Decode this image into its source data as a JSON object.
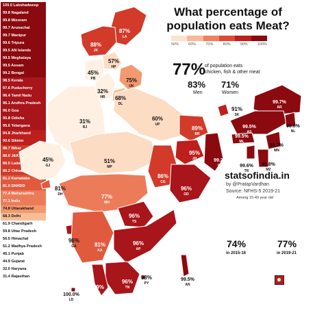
{
  "title_line1": "What percentage of",
  "title_line2": "population eats Meat?",
  "legend": {
    "ticks": [
      "50%",
      "60%",
      "70%",
      "80%",
      "90%",
      "100%"
    ],
    "colors": [
      "#fde2cf",
      "#f9b896",
      "#ef8060",
      "#dc4a33",
      "#bd1f1d",
      "#8b0a0f"
    ]
  },
  "headline": {
    "value": "77%",
    "caption_line1": "of population eats",
    "caption_line2": "chicken, fish & other meat"
  },
  "men": {
    "value": "83%",
    "label": "Men"
  },
  "women": {
    "value": "71%",
    "label": "Women"
  },
  "brand": "statsofindia.in",
  "byline": "by @PratapVardhan",
  "source": "Source: NFHS-5 2019-21",
  "among": "Among 15-49 year old",
  "trend_2015": {
    "value": "74%",
    "label": "in 2015-16"
  },
  "trend_2019": {
    "value": "77%",
    "label": "in 2019-21"
  },
  "ranking": [
    {
      "text": "100.0 Lakshadweep",
      "value": 100.0
    },
    {
      "text": "99.8 Nagaland",
      "value": 99.8
    },
    {
      "text": "99.8 Mizoram",
      "value": 99.8
    },
    {
      "text": "99.7 Arunachal",
      "value": 99.7
    },
    {
      "text": "99.7 Manipur",
      "value": 99.7
    },
    {
      "text": "99.6 Tripura",
      "value": 99.6
    },
    {
      "text": "99.5 AN Islands",
      "value": 99.5
    },
    {
      "text": "99.5 Meghalaya",
      "value": 99.5
    },
    {
      "text": "99.5 Assam",
      "value": 99.5
    },
    {
      "text": "99.2 Bengal",
      "value": 99.2
    },
    {
      "text": "98.5 Kerala",
      "value": 98.5
    },
    {
      "text": "97.6 Puducherry",
      "value": 97.6
    },
    {
      "text": "96.4 Tamil Nadu",
      "value": 96.4
    },
    {
      "text": "96.1 Andhra Pradesh",
      "value": 96.1
    },
    {
      "text": "96.0 Goa",
      "value": 96.0
    },
    {
      "text": "95.8 Odisha",
      "value": 95.8
    },
    {
      "text": "95.6 Telangana",
      "value": 95.6
    },
    {
      "text": "94.8 Jharkhand",
      "value": 94.8
    },
    {
      "text": "90.6 Sikkim",
      "value": 90.6
    },
    {
      "text": "88.7 Bihar",
      "value": 88.7
    },
    {
      "text": "88.0 J&K",
      "value": 88.0
    },
    {
      "text": "86.5 Ladakh",
      "value": 86.5
    },
    {
      "text": "86.2 Chhattisgarh",
      "value": 86.2
    },
    {
      "text": "81.2 Karnataka",
      "value": 81.2
    },
    {
      "text": "81.0 DNHDD",
      "value": 81.0
    },
    {
      "text": "77.4 Maharashtra",
      "value": 77.4
    },
    {
      "text": "77.1 India",
      "value": 77.1
    },
    {
      "text": "74.8 Uttarakhand",
      "value": 74.8
    },
    {
      "text": "68.3 Delhi",
      "value": 68.3
    },
    {
      "text": "61.9 Chandigarh",
      "value": 61.9
    },
    {
      "text": "59.8 Uttar Pradesh",
      "value": 59.8
    },
    {
      "text": "56.5 Himachal",
      "value": 56.5
    },
    {
      "text": "51.2 Madhya Pradesh",
      "value": 51.2
    },
    {
      "text": "45.1 Punjab",
      "value": 45.1
    },
    {
      "text": "44.9 Gujarat",
      "value": 44.9
    },
    {
      "text": "32.0 Haryana",
      "value": 32.0
    },
    {
      "text": "31.4 Rajasthan",
      "value": 31.4
    }
  ],
  "map_labels": {
    "LA": {
      "pct": "87%",
      "code": "LA",
      "value": 86.5
    },
    "JK": {
      "pct": "88%",
      "code": "JK",
      "value": 88.0
    },
    "HP": {
      "pct": "57%",
      "code": "HP",
      "value": 56.5
    },
    "PB": {
      "pct": "45%",
      "code": "PB",
      "value": 45.1
    },
    "UK": {
      "pct": "75%",
      "code": "UK",
      "value": 74.8
    },
    "HR": {
      "pct": "32%",
      "code": "HR",
      "value": 32.0
    },
    "DL": {
      "pct": "68%",
      "code": "DL",
      "value": 68.3
    },
    "RJ": {
      "pct": "31%",
      "code": "RJ",
      "value": 31.4
    },
    "UP": {
      "pct": "60%",
      "code": "UP",
      "value": 59.8
    },
    "BR": {
      "pct": "89%",
      "code": "BR",
      "value": 88.7
    },
    "SK": {
      "pct": "91%",
      "code": "SK",
      "value": 90.6
    },
    "AR": {
      "pct": "99.7%",
      "code": "AR",
      "value": 99.7
    },
    "AS": {
      "pct": "99.5%",
      "code": "AS",
      "value": 99.5
    },
    "NL": {
      "pct": "99.8%",
      "code": "NL",
      "value": 99.8
    },
    "ML": {
      "pct": "99.5%",
      "code": "ML",
      "value": 99.5
    },
    "MN": {
      "pct": "99.7%",
      "code": "MN",
      "value": 99.7
    },
    "TR": {
      "pct": "99.6%",
      "code": "TR",
      "value": 99.6
    },
    "MZ": {
      "pct": "99.8%",
      "code": "MZ",
      "value": 99.8
    },
    "GJ": {
      "pct": "45%",
      "code": "GJ",
      "value": 44.9
    },
    "MP": {
      "pct": "51%",
      "code": "MP",
      "value": 51.2
    },
    "JH": {
      "pct": "95%",
      "code": "JH",
      "value": 94.8
    },
    "WB": {
      "pct": "99.2%",
      "code": "WB",
      "value": 99.2
    },
    "DH": {
      "pct": "81%",
      "code": "DH",
      "value": 81.0
    },
    "CG": {
      "pct": "86%",
      "code": "CG",
      "value": 86.2
    },
    "MH": {
      "pct": "77%",
      "code": "MH",
      "value": 77.4
    },
    "OD": {
      "pct": "96%",
      "code": "OD",
      "value": 95.8
    },
    "TS": {
      "pct": "96%",
      "code": "TS",
      "value": 95.6
    },
    "GA": {
      "pct": "96%",
      "code": "GA",
      "value": 96.0
    },
    "KA": {
      "pct": "81%",
      "code": "KA",
      "value": 81.2
    },
    "AP": {
      "pct": "96%",
      "code": "AP",
      "value": 96.1
    },
    "TN": {
      "pct": "96%",
      "code": "TN",
      "value": 96.4
    },
    "KL": {
      "pct": "99%",
      "code": "KL",
      "value": 98.5
    },
    "PY": {
      "pct": "98%",
      "code": "PY",
      "value": 97.6
    },
    "AN": {
      "pct": "99.5%",
      "code": "AN",
      "value": 99.5
    },
    "LD": {
      "pct": "100.0%",
      "code": "LD",
      "value": 100.0
    }
  }
}
